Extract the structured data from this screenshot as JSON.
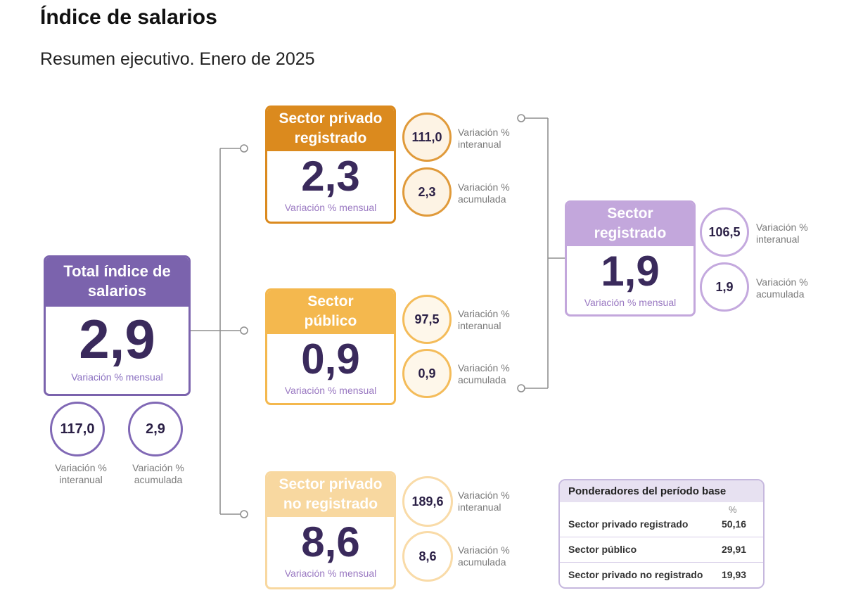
{
  "title": "Índice de salarios",
  "subtitle": "Resumen ejecutivo. Enero de 2025",
  "colors": {
    "total": "#7b63ad",
    "privado_registrado": "#db8a1e",
    "publico": "#f4b84e",
    "privado_no_registrado": "#f8d8a0",
    "registrado": "#c3a7dc"
  },
  "total": {
    "heading": "Total índice de salarios",
    "value": "2,9",
    "foot": "Variación % mensual",
    "interanual": "117,0",
    "interanual_label": "Variación % interanual",
    "acumulada": "2,9",
    "acumulada_label": "Variación % acumulada"
  },
  "privado_registrado": {
    "heading": "Sector privado registrado",
    "value": "2,3",
    "foot": "Variación % mensual",
    "interanual": "111,0",
    "interanual_label": "Variación % interanual",
    "acumulada": "2,3",
    "acumulada_label": "Variación % acumulada"
  },
  "publico": {
    "heading": "Sector público",
    "value": "0,9",
    "foot": "Variación % mensual",
    "interanual": "97,5",
    "interanual_label": "Variación % interanual",
    "acumulada": "0,9",
    "acumulada_label": "Variación % acumulada"
  },
  "privado_no_registrado": {
    "heading": "Sector privado no registrado",
    "value": "8,6",
    "foot": "Variación % mensual",
    "interanual": "189,6",
    "interanual_label": "Variación % interanual",
    "acumulada": "8,6",
    "acumulada_label": "Variación % acumulada"
  },
  "registrado": {
    "heading": "Sector registrado",
    "value": "1,9",
    "foot": "Variación % mensual",
    "interanual": "106,5",
    "interanual_label": "Variación % interanual",
    "acumulada": "1,9",
    "acumulada_label": "Variación % acumulada"
  },
  "ponderadores": {
    "heading": "Ponderadores del período base",
    "unit": "%",
    "rows": [
      {
        "label": "Sector privado registrado",
        "value": "50,16"
      },
      {
        "label": "Sector público",
        "value": "29,91"
      },
      {
        "label": "Sector privado no registrado",
        "value": "19,93"
      }
    ]
  }
}
